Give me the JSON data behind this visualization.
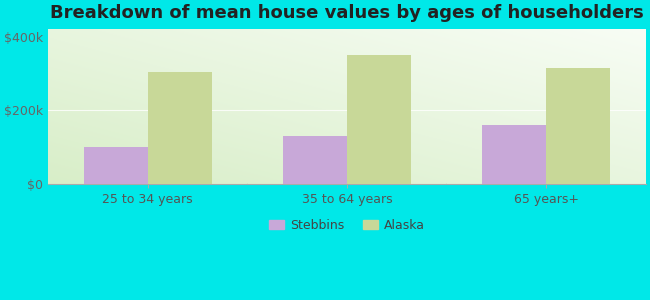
{
  "title": "Breakdown of mean house values by ages of householders",
  "categories": [
    "25 to 34 years",
    "35 to 64 years",
    "65 years+"
  ],
  "stebbins_values": [
    100000,
    130000,
    160000
  ],
  "alaska_values": [
    305000,
    350000,
    315000
  ],
  "stebbins_color": "#c8a8d8",
  "alaska_color": "#c8d898",
  "yticks": [
    0,
    200000,
    400000
  ],
  "ytick_labels": [
    "$0",
    "$200k",
    "$400k"
  ],
  "ylim": [
    0,
    420000
  ],
  "background_color": "#00e8e8",
  "legend_stebbins": "Stebbins",
  "legend_alaska": "Alaska",
  "bar_width": 0.32,
  "title_fontsize": 13,
  "tick_fontsize": 9,
  "legend_fontsize": 9
}
